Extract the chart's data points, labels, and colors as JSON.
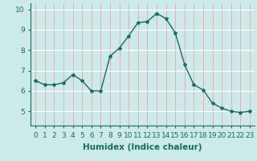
{
  "x": [
    0,
    1,
    2,
    3,
    4,
    5,
    6,
    7,
    8,
    9,
    10,
    11,
    12,
    13,
    14,
    15,
    16,
    17,
    18,
    19,
    20,
    21,
    22,
    23
  ],
  "y": [
    6.5,
    6.3,
    6.3,
    6.4,
    6.8,
    6.5,
    6.0,
    6.0,
    7.7,
    8.1,
    8.7,
    9.35,
    9.4,
    9.8,
    9.55,
    8.85,
    7.3,
    6.3,
    6.05,
    5.4,
    5.15,
    5.0,
    4.95,
    5.0
  ],
  "line_color": "#1a6b5a",
  "marker": "*",
  "marker_size": 3,
  "bg_color": "#cceaea",
  "grid_color_v": "#f0a0a0",
  "grid_color_h": "#ffffff",
  "xlabel": "Humidex (Indice chaleur)",
  "xlim": [
    -0.5,
    23.5
  ],
  "ylim": [
    4.3,
    10.3
  ],
  "yticks": [
    5,
    6,
    7,
    8,
    9,
    10
  ],
  "xticks": [
    0,
    1,
    2,
    3,
    4,
    5,
    6,
    7,
    8,
    9,
    10,
    11,
    12,
    13,
    14,
    15,
    16,
    17,
    18,
    19,
    20,
    21,
    22,
    23
  ],
  "xlabel_fontsize": 7.5,
  "tick_fontsize": 6.5
}
